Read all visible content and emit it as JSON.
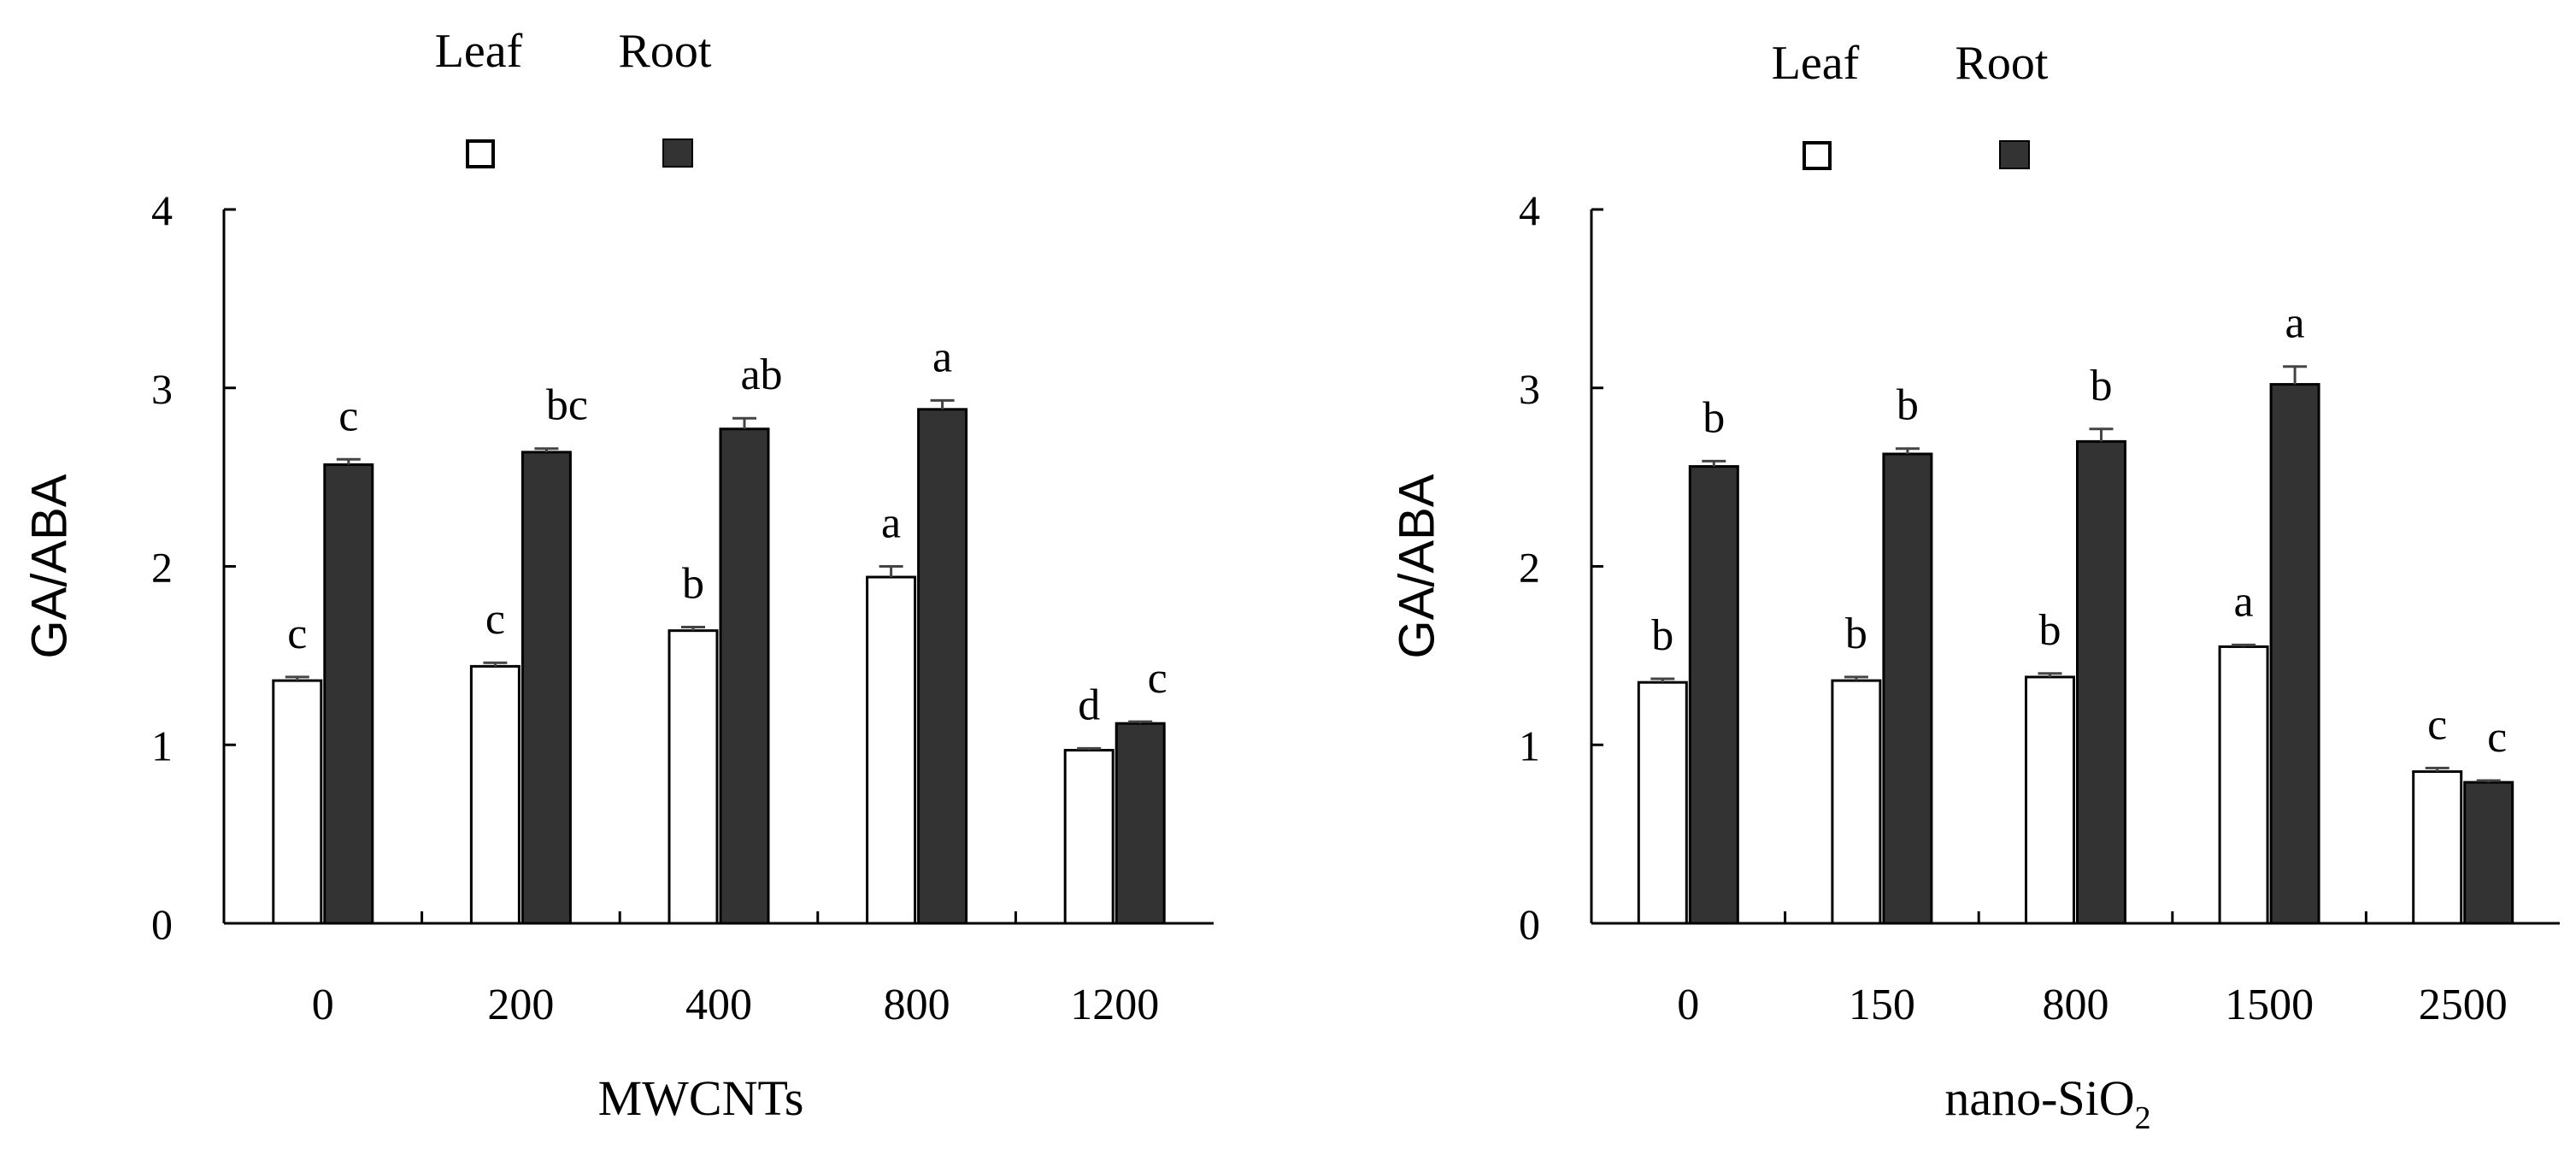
{
  "chart_data": [
    {
      "type": "bar",
      "title": "",
      "xlabel": "MWCNTs",
      "xlabel_sub": "",
      "ylabel": "GA/ABA",
      "ylim": [
        0,
        4
      ],
      "yticks": [
        0,
        1,
        2,
        3,
        4
      ],
      "categories": [
        "0",
        "200",
        "400",
        "800",
        "1200"
      ],
      "series": [
        {
          "name": "Leaf",
          "color": "#ffffff",
          "values": [
            1.36,
            1.44,
            1.64,
            1.94,
            0.97
          ],
          "errors": [
            0.02,
            0.02,
            0.02,
            0.06,
            0.01
          ],
          "letters": [
            "c",
            "c",
            "b",
            "a",
            "d"
          ]
        },
        {
          "name": "Root",
          "color": "#333333",
          "values": [
            2.57,
            2.64,
            2.77,
            2.88,
            1.12
          ],
          "errors": [
            0.03,
            0.02,
            0.06,
            0.05,
            0.01
          ],
          "letters": [
            "c",
            "bc",
            "ab",
            "a",
            "c"
          ]
        }
      ],
      "legend_position": "top"
    },
    {
      "type": "bar",
      "title": "",
      "xlabel": "nano-SiO",
      "xlabel_sub": "2",
      "ylabel": "GA/ABA",
      "ylim": [
        0,
        4
      ],
      "yticks": [
        0,
        1,
        2,
        3,
        4
      ],
      "categories": [
        "0",
        "150",
        "800",
        "1500",
        "2500"
      ],
      "series": [
        {
          "name": "Leaf",
          "color": "#ffffff",
          "values": [
            1.35,
            1.36,
            1.38,
            1.55,
            0.85
          ],
          "errors": [
            0.02,
            0.02,
            0.02,
            0.01,
            0.02
          ],
          "letters": [
            "b",
            "b",
            "b",
            "a",
            "c"
          ]
        },
        {
          "name": "Root",
          "color": "#333333",
          "values": [
            2.56,
            2.63,
            2.7,
            3.02,
            0.79
          ],
          "errors": [
            0.03,
            0.03,
            0.07,
            0.1,
            0.01
          ],
          "letters": [
            "b",
            "b",
            "b",
            "a",
            "c"
          ]
        }
      ],
      "legend_position": "top"
    }
  ]
}
